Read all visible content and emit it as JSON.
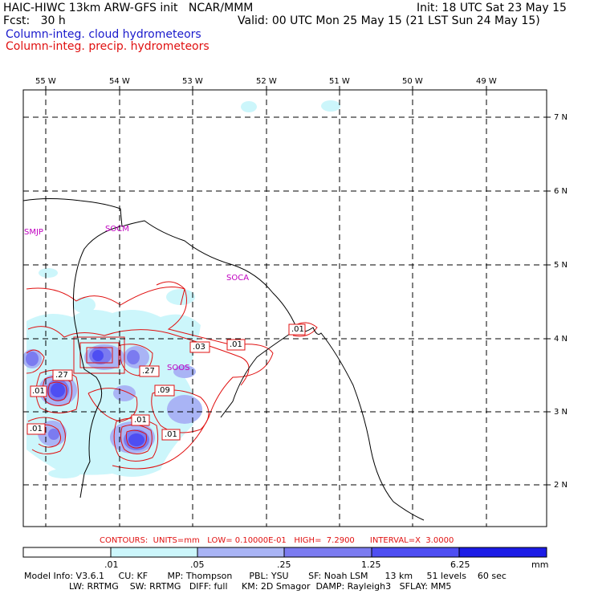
{
  "header": {
    "line1_left": "HAIC-HIWC 13km ARW-GFS init   NCAR/MMM",
    "line1_right": "Init: 18 UTC Sat 23 May 15",
    "line2_left": "Fcst:   30 h",
    "line2_right": "Valid: 00 UTC Mon 25 May 15 (21 LST Sun 24 May 15)",
    "field_cloud": "Column-integ. cloud hydrometeors",
    "field_precip": "Column-integ. precip. hydrometeors"
  },
  "map": {
    "lon_labels": [
      "55 W",
      "54 W",
      "53 W",
      "52 W",
      "51 W",
      "50 W",
      "49 W"
    ],
    "lat_labels": [
      "7 N",
      "6 N",
      "5 N",
      "4 N",
      "3 N",
      "2 N"
    ],
    "stations": [
      {
        "id": "smjp",
        "label": "SMJP"
      },
      {
        "id": "socm",
        "label": "SOCM"
      },
      {
        "id": "soca",
        "label": "SOCA"
      },
      {
        "id": "soos",
        "label": "SOOS"
      }
    ],
    "contour_labels": [
      ".01",
      ".03",
      ".01",
      ".27",
      ".27",
      ".09",
      ".01",
      ".01",
      ".01",
      ".01",
      ".01"
    ]
  },
  "contours_info": "CONTOURS:  UNITS=mm   LOW= 0.10000E-01   HIGH=  7.2900      INTERVAL=X  3.0000",
  "colorbar": {
    "labels": [
      ".01",
      ".05",
      ".25",
      "1.25",
      "6.25"
    ],
    "unit": "mm",
    "colors": [
      "#ffffff",
      "#ccf6fb",
      "#a9b4f5",
      "#7b7bf0",
      "#4e4ef2",
      "#1c1ce6"
    ]
  },
  "footer": {
    "line1": "Model Info: V3.6.1     CU: KF       MP: Thompson      PBL: YSU       SF: Noah LSM      13 km     51 levels    60 sec",
    "line2": "                LW: RRTMG    SW: RRTMG   DIFF: full     KM: 2D Smagor  DAMP: Rayleigh3   SFLAY: MM5"
  }
}
